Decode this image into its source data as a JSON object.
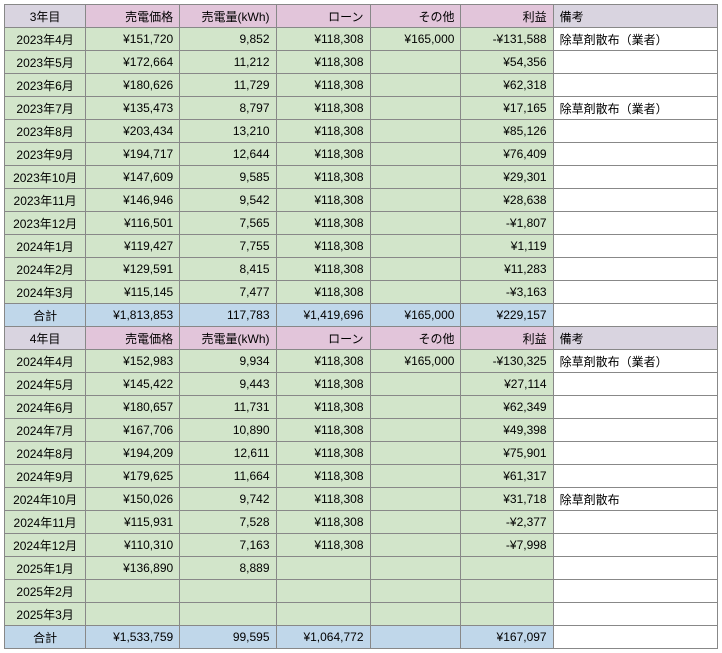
{
  "sections": [
    {
      "header": [
        "3年目",
        "売電価格",
        "売電量(kWh)",
        "ローン",
        "その他",
        "利益",
        "備考"
      ],
      "rows": [
        [
          "2023年4月",
          "¥151,720",
          "9,852",
          "¥118,308",
          "¥165,000",
          "-¥131,588",
          "除草剤散布（業者）"
        ],
        [
          "2023年5月",
          "¥172,664",
          "11,212",
          "¥118,308",
          "",
          "¥54,356",
          ""
        ],
        [
          "2023年6月",
          "¥180,626",
          "11,729",
          "¥118,308",
          "",
          "¥62,318",
          ""
        ],
        [
          "2023年7月",
          "¥135,473",
          "8,797",
          "¥118,308",
          "",
          "¥17,165",
          "除草剤散布（業者）"
        ],
        [
          "2023年8月",
          "¥203,434",
          "13,210",
          "¥118,308",
          "",
          "¥85,126",
          ""
        ],
        [
          "2023年9月",
          "¥194,717",
          "12,644",
          "¥118,308",
          "",
          "¥76,409",
          ""
        ],
        [
          "2023年10月",
          "¥147,609",
          "9,585",
          "¥118,308",
          "",
          "¥29,301",
          ""
        ],
        [
          "2023年11月",
          "¥146,946",
          "9,542",
          "¥118,308",
          "",
          "¥28,638",
          ""
        ],
        [
          "2023年12月",
          "¥116,501",
          "7,565",
          "¥118,308",
          "",
          "-¥1,807",
          ""
        ],
        [
          "2024年1月",
          "¥119,427",
          "7,755",
          "¥118,308",
          "",
          "¥1,119",
          ""
        ],
        [
          "2024年2月",
          "¥129,591",
          "8,415",
          "¥118,308",
          "",
          "¥11,283",
          ""
        ],
        [
          "2024年3月",
          "¥115,145",
          "7,477",
          "¥118,308",
          "",
          "-¥3,163",
          ""
        ]
      ],
      "subtotal": [
        "合計",
        "¥1,813,853",
        "117,783",
        "¥1,419,696",
        "¥165,000",
        "¥229,157",
        ""
      ]
    },
    {
      "header": [
        "4年目",
        "売電価格",
        "売電量(kWh)",
        "ローン",
        "その他",
        "利益",
        "備考"
      ],
      "rows": [
        [
          "2024年4月",
          "¥152,983",
          "9,934",
          "¥118,308",
          "¥165,000",
          "-¥130,325",
          "除草剤散布（業者）"
        ],
        [
          "2024年5月",
          "¥145,422",
          "9,443",
          "¥118,308",
          "",
          "¥27,114",
          ""
        ],
        [
          "2024年6月",
          "¥180,657",
          "11,731",
          "¥118,308",
          "",
          "¥62,349",
          ""
        ],
        [
          "2024年7月",
          "¥167,706",
          "10,890",
          "¥118,308",
          "",
          "¥49,398",
          ""
        ],
        [
          "2024年8月",
          "¥194,209",
          "12,611",
          "¥118,308",
          "",
          "¥75,901",
          ""
        ],
        [
          "2024年9月",
          "¥179,625",
          "11,664",
          "¥118,308",
          "",
          "¥61,317",
          ""
        ],
        [
          "2024年10月",
          "¥150,026",
          "9,742",
          "¥118,308",
          "",
          "¥31,718",
          "除草剤散布"
        ],
        [
          "2024年11月",
          "¥115,931",
          "7,528",
          "¥118,308",
          "",
          "-¥2,377",
          ""
        ],
        [
          "2024年12月",
          "¥110,310",
          "7,163",
          "¥118,308",
          "",
          "-¥7,998",
          ""
        ],
        [
          "2025年1月",
          "¥136,890",
          "8,889",
          "",
          "",
          "",
          ""
        ],
        [
          "2025年2月",
          "",
          "",
          "",
          "",
          "",
          ""
        ],
        [
          "2025年3月",
          "",
          "",
          "",
          "",
          "",
          ""
        ]
      ],
      "subtotal": [
        "合計",
        "¥1,533,759",
        "99,595",
        "¥1,064,772",
        "",
        "¥167,097",
        ""
      ]
    }
  ],
  "colors": {
    "header_pink": "#e2c5da",
    "header_gray": "#d9d4e0",
    "row_green": "#d2e5ca",
    "subtotal_blue": "#c0d7ea",
    "border": "#888888"
  },
  "font_size": 12
}
